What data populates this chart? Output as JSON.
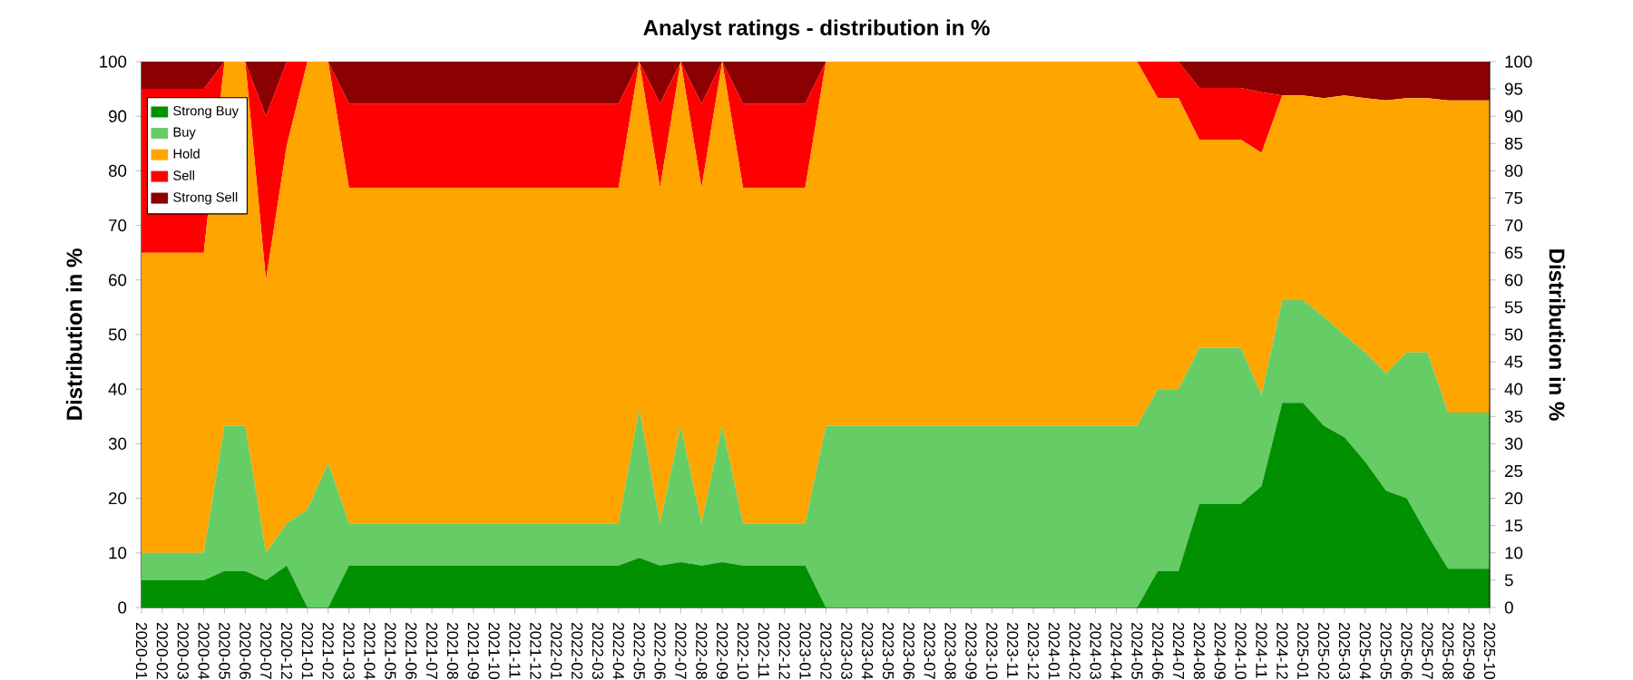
{
  "chart_data": {
    "type": "area",
    "title": "Analyst ratings - distribution in %",
    "ylabel": "Distribution in %",
    "y2label": "Distribution in %",
    "categories": [
      "2020-01",
      "2020-02",
      "2020-03",
      "2020-04",
      "2020-05",
      "2020-06",
      "2020-07",
      "2020-12",
      "2021-01",
      "2021-02",
      "2021-03",
      "2021-04",
      "2021-05",
      "2021-06",
      "2021-07",
      "2021-08",
      "2021-09",
      "2021-10",
      "2021-11",
      "2021-12",
      "2022-01",
      "2022-02",
      "2022-03",
      "2022-04",
      "2022-05",
      "2022-06",
      "2022-07",
      "2022-08",
      "2022-09",
      "2022-10",
      "2022-11",
      "2022-12",
      "2023-01",
      "2023-02",
      "2023-03",
      "2023-04",
      "2023-05",
      "2023-06",
      "2023-07",
      "2023-08",
      "2023-09",
      "2023-10",
      "2023-11",
      "2023-12",
      "2024-01",
      "2024-02",
      "2024-03",
      "2024-04",
      "2024-05",
      "2024-06",
      "2024-07",
      "2024-08",
      "2024-09",
      "2024-10",
      "2024-11",
      "2024-12",
      "2025-01",
      "2025-02",
      "2025-03",
      "2025-04",
      "2025-05",
      "2025-06",
      "2025-07",
      "2025-08",
      "2025-09",
      "2025-10"
    ],
    "stacked": true,
    "series": [
      {
        "name": "Strong Buy",
        "color": "#009000",
        "values": [
          5,
          5,
          5,
          5,
          6.7,
          6.7,
          5,
          7.7,
          0,
          0,
          7.7,
          7.7,
          7.7,
          7.7,
          7.7,
          7.7,
          7.7,
          7.7,
          7.7,
          7.7,
          7.7,
          7.7,
          7.7,
          7.7,
          9.1,
          7.7,
          8.3,
          7.7,
          8.3,
          7.7,
          7.7,
          7.7,
          7.7,
          0,
          0,
          0,
          0,
          0,
          0,
          0,
          0,
          0,
          0,
          0,
          0,
          0,
          0,
          0,
          0,
          6.7,
          6.7,
          19,
          19,
          19,
          22.2,
          37.5,
          37.5,
          33.3,
          31.2,
          26.7,
          21.4,
          20,
          13.3,
          7.1,
          7.1,
          7.1
        ]
      },
      {
        "name": "Buy",
        "color": "#66cc66",
        "values": [
          5,
          5,
          5,
          5,
          26.6,
          26.6,
          5,
          7.7,
          18,
          26.5,
          7.7,
          7.7,
          7.7,
          7.7,
          7.7,
          7.7,
          7.7,
          7.7,
          7.7,
          7.7,
          7.7,
          7.7,
          7.7,
          7.7,
          27.3,
          7.7,
          25,
          7.7,
          25,
          7.7,
          7.7,
          7.7,
          7.7,
          33.3,
          33.3,
          33.3,
          33.3,
          33.3,
          33.3,
          33.3,
          33.3,
          33.3,
          33.3,
          33.3,
          33.3,
          33.3,
          33.3,
          33.3,
          33.3,
          33.3,
          33.3,
          28.6,
          28.6,
          28.6,
          16.7,
          18.8,
          18.8,
          20,
          18.8,
          20,
          21.5,
          26.7,
          33.4,
          28.6,
          28.6,
          28.6
        ]
      },
      {
        "name": "Hold",
        "color": "#ffa500",
        "values": [
          55,
          55,
          55,
          55,
          66.7,
          66.7,
          50,
          69.2,
          82,
          73.5,
          61.5,
          61.5,
          61.5,
          61.5,
          61.5,
          61.5,
          61.5,
          61.5,
          61.5,
          61.5,
          61.5,
          61.5,
          61.5,
          61.5,
          63.6,
          61.5,
          66.7,
          61.5,
          66.7,
          61.5,
          61.5,
          61.5,
          61.5,
          66.7,
          66.7,
          66.7,
          66.7,
          66.7,
          66.7,
          66.7,
          66.7,
          66.7,
          66.7,
          66.7,
          66.7,
          66.7,
          66.7,
          66.7,
          66.7,
          53.3,
          53.3,
          38.1,
          38.1,
          38.1,
          44.4,
          37.5,
          37.5,
          40,
          43.8,
          46.6,
          50,
          46.6,
          46.6,
          57.2,
          57.2,
          57.2
        ]
      },
      {
        "name": "Sell",
        "color": "#ff0000",
        "values": [
          30,
          30,
          30,
          30,
          0,
          0,
          30,
          15.4,
          0,
          0,
          15.4,
          15.4,
          15.4,
          15.4,
          15.4,
          15.4,
          15.4,
          15.4,
          15.4,
          15.4,
          15.4,
          15.4,
          15.4,
          15.4,
          0,
          15.4,
          0,
          15.4,
          0,
          15.4,
          15.4,
          15.4,
          15.4,
          0,
          0,
          0,
          0,
          0,
          0,
          0,
          0,
          0,
          0,
          0,
          0,
          0,
          0,
          0,
          0,
          6.7,
          6.7,
          9.5,
          9.5,
          9.5,
          11.1,
          0,
          0,
          0,
          0,
          0,
          0,
          0,
          0,
          0,
          0,
          0
        ]
      },
      {
        "name": "Strong Sell",
        "color": "#8b0000",
        "values": [
          5,
          5,
          5,
          5,
          0,
          0,
          10,
          0,
          0,
          0,
          7.7,
          7.7,
          7.7,
          7.7,
          7.7,
          7.7,
          7.7,
          7.7,
          7.7,
          7.7,
          7.7,
          7.7,
          7.7,
          7.7,
          0,
          7.7,
          0,
          7.7,
          0,
          7.7,
          7.7,
          7.7,
          7.7,
          0,
          0,
          0,
          0,
          0,
          0,
          0,
          0,
          0,
          0,
          0,
          0,
          0,
          0,
          0,
          0,
          0,
          0,
          4.8,
          4.8,
          4.8,
          5.6,
          6.2,
          6.2,
          6.7,
          6.2,
          6.7,
          7.1,
          6.7,
          6.7,
          7.1,
          7.1,
          7.1
        ]
      }
    ],
    "ylim": [
      0,
      100
    ],
    "yticks": [
      0,
      10,
      20,
      30,
      40,
      50,
      60,
      70,
      80,
      90,
      100
    ],
    "y2lim": [
      0,
      100
    ],
    "y2ticks": [
      0,
      5,
      10,
      15,
      20,
      25,
      30,
      35,
      40,
      45,
      50,
      55,
      60,
      65,
      70,
      75,
      80,
      85,
      90,
      95,
      100
    ],
    "grid": "y",
    "legend": "top left"
  }
}
